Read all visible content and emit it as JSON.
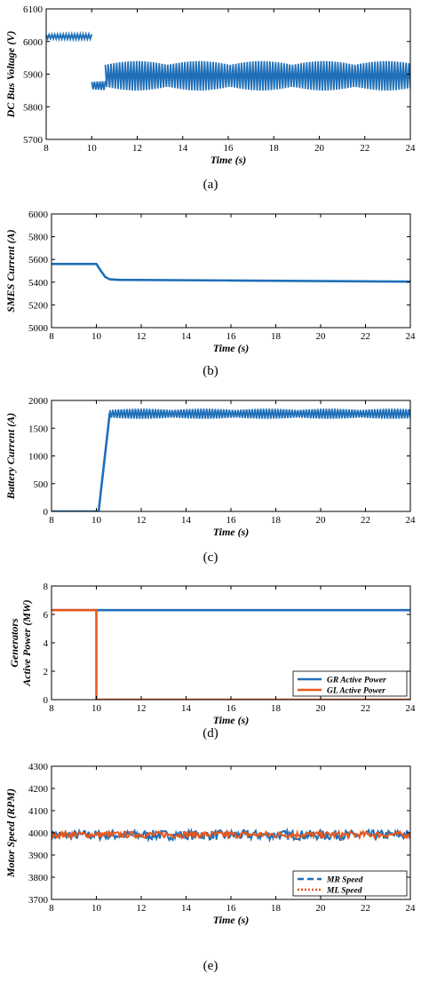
{
  "colors": {
    "blue": "#1f6fb8",
    "orange": "#e8581c",
    "axis": "#000000",
    "background": "#ffffff"
  },
  "chart_data": [
    {
      "type": "line",
      "panel": "a",
      "caption": "(a)",
      "xlabel": "Time (s)",
      "ylabel": "DC Bus Voltage (V)",
      "xlim": [
        8,
        24
      ],
      "ylim": [
        5700,
        6100
      ],
      "xticks": [
        8,
        10,
        12,
        14,
        16,
        18,
        20,
        22,
        24
      ],
      "yticks": [
        5700,
        5800,
        5900,
        6000,
        6100
      ],
      "grid": false,
      "series": [
        {
          "color": "#1f6fb8",
          "style": "oscillation",
          "segments": [
            {
              "x0": 8,
              "x1": 10,
              "mid": 6015,
              "amp": 8
            },
            {
              "x0": 10,
              "x1": 10.6,
              "mid": 5865,
              "amp": 15
            },
            {
              "x0": 10.6,
              "x1": 24,
              "mid": 5895,
              "amp": 45
            }
          ]
        }
      ]
    },
    {
      "type": "line",
      "panel": "b",
      "caption": "(b)",
      "xlabel": "Time (s)",
      "ylabel": "SMES Current (A)",
      "xlim": [
        8,
        24
      ],
      "ylim": [
        5000,
        6000
      ],
      "xticks": [
        8,
        10,
        12,
        14,
        16,
        18,
        20,
        22,
        24
      ],
      "yticks": [
        5000,
        5200,
        5400,
        5600,
        5800,
        6000
      ],
      "grid": false,
      "series": [
        {
          "color": "#1f6fb8",
          "style": "polyline",
          "x": [
            8,
            10,
            10.2,
            10.4,
            10.6,
            11,
            16,
            24
          ],
          "y": [
            5560,
            5560,
            5500,
            5445,
            5425,
            5420,
            5415,
            5405
          ]
        }
      ]
    },
    {
      "type": "line",
      "panel": "c",
      "caption": "(c)",
      "xlabel": "Time (s)",
      "ylabel": "Battery Current (A)",
      "xlim": [
        8,
        24
      ],
      "ylim": [
        0,
        2000
      ],
      "xticks": [
        8,
        10,
        12,
        14,
        16,
        18,
        20,
        22,
        24
      ],
      "yticks": [
        0,
        500,
        1000,
        1500,
        2000
      ],
      "grid": false,
      "series": [
        {
          "color": "#1f6fb8",
          "style": "oscillation",
          "segments": [
            {
              "x0": 8,
              "x1": 10.1,
              "mid": 0,
              "amp": 0
            },
            {
              "x0": 10.1,
              "x1": 10.6,
              "ramp_from": 0,
              "ramp_to": 1780
            },
            {
              "x0": 10.6,
              "x1": 24,
              "mid": 1760,
              "amp": 90
            }
          ]
        }
      ]
    },
    {
      "type": "line",
      "panel": "d",
      "caption": "(d)",
      "xlabel": "Time (s)",
      "ylabel_lines": [
        "Generators",
        "Active Power (MW)"
      ],
      "xlim": [
        8,
        24
      ],
      "ylim": [
        0,
        8
      ],
      "xticks": [
        8,
        10,
        12,
        14,
        16,
        18,
        20,
        22,
        24
      ],
      "yticks": [
        0,
        2,
        4,
        6,
        8
      ],
      "grid": false,
      "legend": "bottom-right",
      "series": [
        {
          "name": "GR Active Power",
          "color": "#1f6fb8",
          "style": "polyline",
          "x": [
            8,
            24
          ],
          "y": [
            6.3,
            6.3
          ]
        },
        {
          "name": "GL Active Power",
          "color": "#e8581c",
          "style": "polyline",
          "x": [
            8,
            10,
            10,
            24
          ],
          "y": [
            6.3,
            6.3,
            0,
            0
          ]
        }
      ]
    },
    {
      "type": "line",
      "panel": "e",
      "caption": "(e)",
      "xlabel": "Time (s)",
      "ylabel": "Motor Speed (RPM)",
      "xlim": [
        8,
        24
      ],
      "ylim": [
        3700,
        4300
      ],
      "xticks": [
        8,
        10,
        12,
        14,
        16,
        18,
        20,
        22,
        24
      ],
      "yticks": [
        3700,
        3800,
        3900,
        4000,
        4100,
        4200,
        4300
      ],
      "grid": false,
      "legend": "bottom-right",
      "series": [
        {
          "name": "MR Speed",
          "color": "#1f6fb8",
          "dash": "dashed",
          "style": "noise",
          "mid": 3990,
          "amp": 22,
          "x0": 8,
          "x1": 24
        },
        {
          "name": "ML Speed",
          "color": "#e8581c",
          "dash": "dotted",
          "style": "noise",
          "mid": 3992,
          "amp": 14,
          "x0": 8,
          "x1": 24
        }
      ]
    }
  ]
}
